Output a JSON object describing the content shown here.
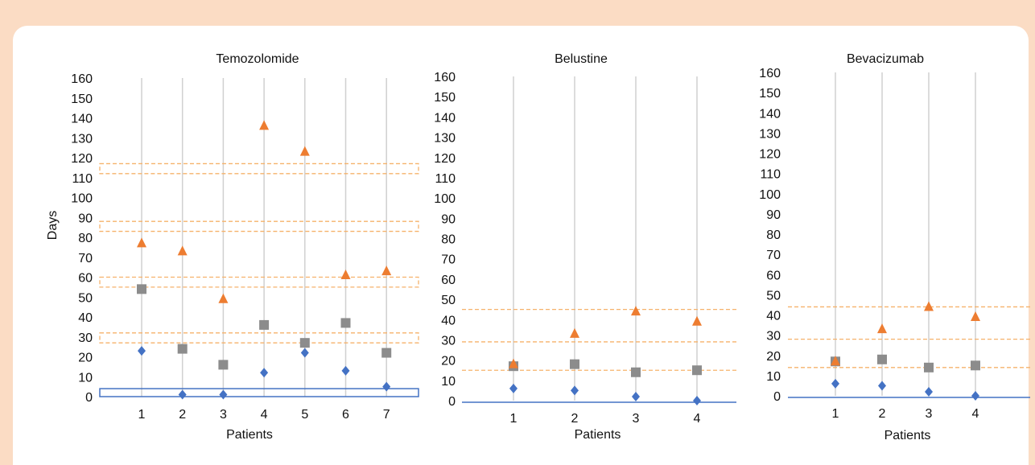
{
  "colors": {
    "background": "#fbdcc4",
    "panel": "#ffffff",
    "series_a": "#4472c4",
    "series_b": "#8c8c8c",
    "series_c": "#ed7d31",
    "band": "#f6b26b",
    "box": "#4472c4",
    "grid": "#d0d0d0"
  },
  "chart_data": [
    {
      "type": "scatter",
      "title": "Temozolomide",
      "xlabel": "Patients",
      "ylabel": "Days",
      "categories": [
        "1",
        "2",
        "3",
        "4",
        "5",
        "6",
        "7"
      ],
      "ylim": [
        0,
        160
      ],
      "yticks": [
        0,
        10,
        20,
        30,
        40,
        50,
        60,
        70,
        80,
        90,
        100,
        110,
        120,
        130,
        140,
        150,
        160
      ],
      "grid": "vertical",
      "series": [
        {
          "marker": "diamond",
          "color": "#4472c4",
          "values": [
            23,
            1,
            1,
            12,
            22,
            13,
            5
          ]
        },
        {
          "marker": "square",
          "color": "#8c8c8c",
          "values": [
            54,
            24,
            16,
            36,
            27,
            37,
            22
          ]
        },
        {
          "marker": "triangle",
          "color": "#ed7d31",
          "values": [
            77,
            73,
            49,
            136,
            123,
            61,
            63
          ]
        }
      ],
      "bands": [
        [
          112,
          117
        ],
        [
          83,
          88
        ],
        [
          55,
          60
        ],
        [
          27,
          32
        ]
      ],
      "baseline_box": [
        0,
        4
      ]
    },
    {
      "type": "scatter",
      "title": "Belustine",
      "xlabel": "Patients",
      "ylabel": "",
      "categories": [
        "1",
        "2",
        "3",
        "4"
      ],
      "ylim": [
        0,
        160
      ],
      "yticks": [
        0,
        10,
        20,
        30,
        40,
        50,
        60,
        70,
        80,
        90,
        100,
        110,
        120,
        130,
        140,
        150,
        160
      ],
      "grid": "vertical",
      "series": [
        {
          "marker": "diamond",
          "color": "#4472c4",
          "values": [
            6,
            5,
            2,
            0
          ]
        },
        {
          "marker": "square",
          "color": "#8c8c8c",
          "values": [
            17,
            18,
            14,
            15
          ]
        },
        {
          "marker": "triangle",
          "color": "#ed7d31",
          "values": [
            18,
            33,
            44,
            39
          ]
        }
      ],
      "reference_lines": [
        45,
        29,
        15
      ]
    },
    {
      "type": "scatter",
      "title": "Bevacizumab",
      "xlabel": "Patients",
      "ylabel": "",
      "categories": [
        "1",
        "2",
        "3",
        "4"
      ],
      "ylim": [
        0,
        160
      ],
      "yticks": [
        0,
        10,
        20,
        30,
        40,
        50,
        60,
        70,
        80,
        90,
        100,
        110,
        120,
        130,
        140,
        150,
        160
      ],
      "grid": "vertical",
      "series": [
        {
          "marker": "diamond",
          "color": "#4472c4",
          "values": [
            6,
            5,
            2,
            0
          ]
        },
        {
          "marker": "square",
          "color": "#8c8c8c",
          "values": [
            17,
            18,
            14,
            15
          ]
        },
        {
          "marker": "triangle",
          "color": "#ed7d31",
          "values": [
            17,
            33,
            44,
            39
          ]
        }
      ],
      "reference_lines": [
        44,
        28,
        14
      ]
    }
  ]
}
